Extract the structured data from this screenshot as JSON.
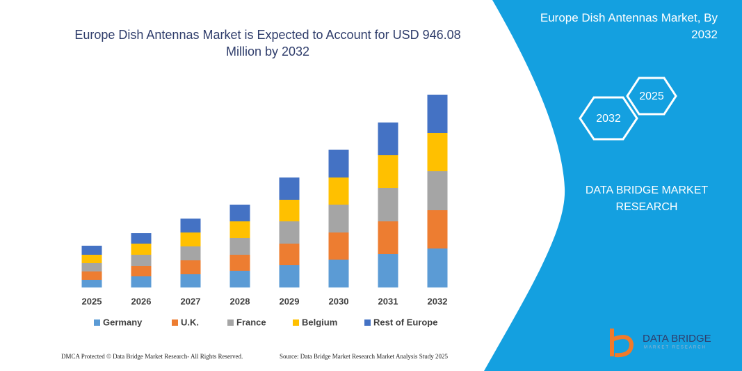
{
  "chart_data": {
    "type": "bar",
    "stacked": true,
    "title": "Europe Dish Antennas Market is Expected to Account for USD 946.08 Million by 2032",
    "categories": [
      "2025",
      "2026",
      "2027",
      "2028",
      "2029",
      "2030",
      "2031",
      "2032"
    ],
    "series": [
      {
        "name": "Germany",
        "color": "#5b9bd5",
        "values": [
          11,
          16,
          19,
          24,
          32,
          40,
          48,
          56
        ]
      },
      {
        "name": "U.K.",
        "color": "#ed7d31",
        "values": [
          12,
          15,
          20,
          23,
          31,
          39,
          47,
          55
        ]
      },
      {
        "name": "France",
        "color": "#a5a5a5",
        "values": [
          12,
          16,
          20,
          24,
          32,
          40,
          48,
          56
        ]
      },
      {
        "name": "Belgium",
        "color": "#ffc000",
        "values": [
          12,
          16,
          20,
          24,
          31,
          39,
          47,
          55
        ]
      },
      {
        "name": "Rest of Europe",
        "color": "#4472c4",
        "values": [
          13,
          15,
          20,
          24,
          32,
          40,
          47,
          55
        ]
      }
    ],
    "ylim": [
      0,
      280
    ],
    "legend": "bottom"
  },
  "panel": {
    "title": "Europe Dish Antennas Market, By 2032",
    "hex_2032": "2032",
    "hex_2025": "2025",
    "company": "DATA BRIDGE MARKET RESEARCH"
  },
  "logo": {
    "name": "DATA BRIDGE",
    "tagline": "MARKET RESEARCH"
  },
  "footer": {
    "left": "DMCA Protected © Data Bridge Market Research- All Rights Reserved.",
    "right": "Source: Data Bridge Market Research  Market Analysis Study 2025"
  }
}
